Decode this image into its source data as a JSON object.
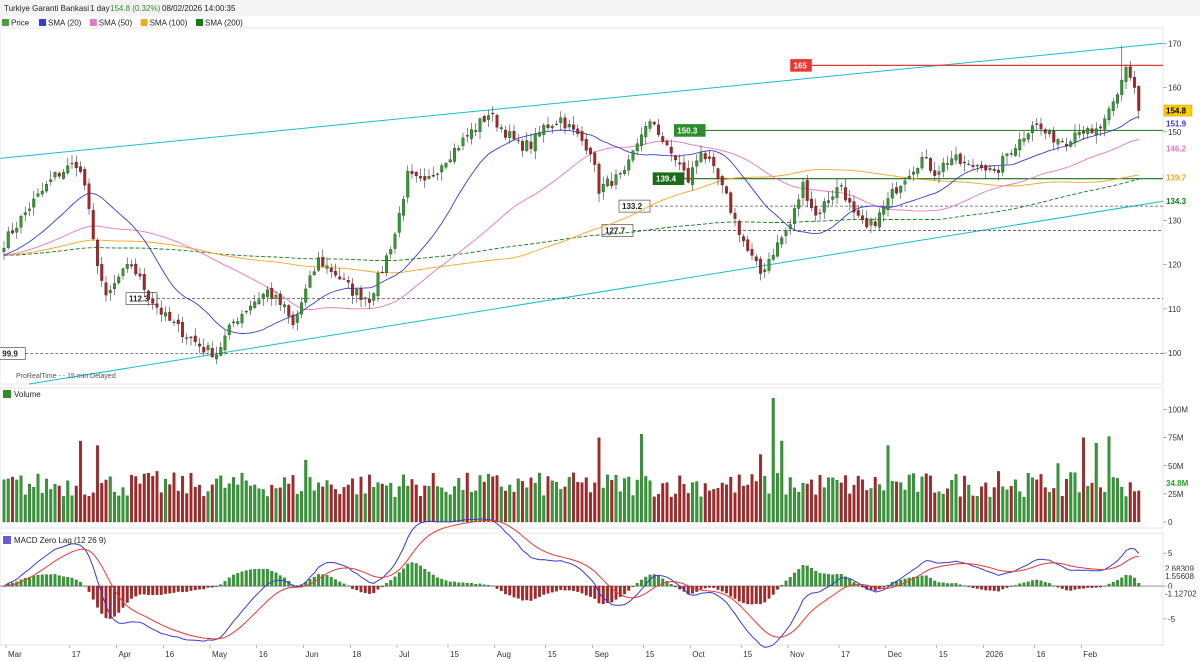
{
  "header": {
    "symbol": "Turkiye Garanti Bankasi",
    "interval": "1 day",
    "last": "154.8 (0.32%)",
    "datetime": "08/02/2026 14:00:35"
  },
  "legend": [
    {
      "label": "Price",
      "color": "#4a9e3f"
    },
    {
      "label": "SMA (20)",
      "color": "#3a3ad6"
    },
    {
      "label": "SMA (50)",
      "color": "#e377c2"
    },
    {
      "label": "SMA (100)",
      "color": "#f5a623"
    },
    {
      "label": "SMA (200)",
      "color": "#1a7a1a"
    }
  ],
  "watermark": "ProRealTime - - 15 min Delayed",
  "volume_title": "Volume",
  "macd_title": "MACD Zero Lag (12 26 9)",
  "chart_data": [
    {
      "type": "candlestick",
      "name": "price",
      "title": "Turkiye Garanti Bankasi",
      "x_labels": [
        "Mar",
        "17",
        "Apr",
        "16",
        "May",
        "16",
        "Jun",
        "18",
        "Jul",
        "15",
        "Aug",
        "15",
        "Sep",
        "15",
        "Oct",
        "15",
        "Nov",
        "17",
        "Dec",
        "15",
        "2026",
        "16",
        "Feb"
      ],
      "yticks": [
        100,
        110,
        120,
        130,
        140,
        150,
        160,
        170
      ],
      "ylim": [
        93,
        173
      ],
      "grid": false,
      "levels": [
        {
          "value": 165,
          "label": "165",
          "color": "#e53935",
          "style": "solid",
          "label_side": "left"
        },
        {
          "value": 150.3,
          "label": "150.3",
          "color": "#2e8b2e",
          "style": "solid",
          "label_side": "left"
        },
        {
          "value": 139.4,
          "label": "139.4",
          "color": "#1a6b1a",
          "style": "solid",
          "label_side": "left"
        },
        {
          "value": 133.2,
          "label": "133.2",
          "color": "#555555",
          "style": "dashed",
          "label_side": "left"
        },
        {
          "value": 127.7,
          "label": "127.7",
          "color": "#555555",
          "style": "dashed",
          "label_side": "left"
        },
        {
          "value": 112.3,
          "label": "112.3",
          "color": "#555555",
          "style": "dashed",
          "label_side": "left"
        },
        {
          "value": 99.9,
          "label": "99.9",
          "color": "#555555",
          "style": "dashed",
          "label_side": "left"
        }
      ],
      "axis_tags": [
        {
          "value": 154.8,
          "label": "154.8",
          "bg": "#ffd000",
          "fg": "#000000"
        },
        {
          "value": 151.9,
          "label": "151.9",
          "bg": "#ffffff",
          "fg": "#3a3ad6"
        },
        {
          "value": 146.2,
          "label": "146.2",
          "bg": "#ffffff",
          "fg": "#e377c2"
        },
        {
          "value": 139.7,
          "label": "139.7",
          "bg": "#ffffff",
          "fg": "#f5a623"
        },
        {
          "value": 134.3,
          "label": "134.3",
          "bg": "#ffffff",
          "fg": "#1a7a1a"
        }
      ],
      "trendlines": [
        {
          "x0": 0,
          "y0": 144,
          "x1": 1,
          "y1": 170,
          "color": "#17becf"
        },
        {
          "x0": 0.025,
          "y0": 93,
          "x1": 1,
          "y1": 134.3,
          "color": "#17becf"
        }
      ],
      "sma_colors": {
        "sma20": "#3a3ad6",
        "sma50": "#e377c2",
        "sma100": "#f5a623",
        "sma200": "#1a7a1a"
      },
      "price_anchors": [
        [
          0,
          125
        ],
        [
          6,
          133
        ],
        [
          12,
          140
        ],
        [
          17,
          143
        ],
        [
          19,
          138
        ],
        [
          21,
          125
        ],
        [
          24,
          112
        ],
        [
          27,
          117
        ],
        [
          30,
          120
        ],
        [
          34,
          113
        ],
        [
          38,
          108
        ],
        [
          43,
          104
        ],
        [
          47,
          101
        ],
        [
          50,
          99.9
        ],
        [
          54,
          107
        ],
        [
          58,
          111
        ],
        [
          62,
          114
        ],
        [
          66,
          110
        ],
        [
          68,
          106
        ],
        [
          71,
          114
        ],
        [
          74,
          121
        ],
        [
          78,
          118
        ],
        [
          82,
          114
        ],
        [
          86,
          112.3
        ],
        [
          89,
          119
        ],
        [
          92,
          127
        ],
        [
          95,
          140
        ],
        [
          99,
          138
        ],
        [
          103,
          143
        ],
        [
          107,
          147
        ],
        [
          110,
          150
        ],
        [
          114,
          154
        ],
        [
          117,
          151
        ],
        [
          121,
          147
        ],
        [
          124,
          147
        ],
        [
          127,
          151
        ],
        [
          131,
          153
        ],
        [
          134,
          150
        ],
        [
          138,
          146
        ],
        [
          140,
          137
        ],
        [
          143,
          139
        ],
        [
          146,
          140
        ],
        [
          150,
          150
        ],
        [
          153,
          152
        ],
        [
          156,
          146
        ],
        [
          158,
          144
        ],
        [
          161,
          139
        ],
        [
          164,
          146
        ],
        [
          167,
          141
        ],
        [
          170,
          135
        ],
        [
          172,
          130
        ],
        [
          175,
          123
        ],
        [
          178,
          118
        ],
        [
          181,
          123
        ],
        [
          185,
          129
        ],
        [
          188,
          138
        ],
        [
          191,
          131
        ],
        [
          194,
          135
        ],
        [
          197,
          138
        ],
        [
          200,
          131
        ],
        [
          203,
          128
        ],
        [
          206,
          131
        ],
        [
          209,
          136
        ],
        [
          212,
          140
        ],
        [
          216,
          144
        ],
        [
          219,
          141
        ],
        [
          223,
          144
        ],
        [
          227,
          142
        ],
        [
          230,
          143
        ],
        [
          233,
          140
        ],
        [
          236,
          145
        ],
        [
          239,
          148
        ],
        [
          242,
          152
        ],
        [
          246,
          149
        ],
        [
          250,
          148
        ],
        [
          253,
          151
        ],
        [
          256,
          149
        ],
        [
          259,
          152
        ],
        [
          262,
          158
        ],
        [
          264,
          165
        ],
        [
          266,
          160
        ],
        [
          267,
          154.8
        ]
      ],
      "series": [
        {
          "name": "Price",
          "color": "#4a9e3f"
        },
        {
          "name": "SMA (20)",
          "color": "#3a3ad6"
        },
        {
          "name": "SMA (50)",
          "color": "#e377c2"
        },
        {
          "name": "SMA (100)",
          "color": "#f5a623"
        },
        {
          "name": "SMA (200)",
          "color": "#1a7a1a"
        }
      ]
    },
    {
      "type": "bar",
      "name": "volume",
      "title": "Volume",
      "yticks": [
        0,
        25,
        50,
        75,
        100
      ],
      "ytick_labels": [
        "0",
        "25M",
        "50M",
        "75M",
        "100M"
      ],
      "ylim": [
        0,
        112
      ],
      "last_label": "34.8M",
      "spikes": [
        [
          18,
          72
        ],
        [
          22,
          68
        ],
        [
          36,
          45
        ],
        [
          71,
          55
        ],
        [
          140,
          75
        ],
        [
          150,
          78
        ],
        [
          178,
          60
        ],
        [
          181,
          110
        ],
        [
          183,
          72
        ],
        [
          208,
          68
        ],
        [
          234,
          45
        ],
        [
          248,
          52
        ],
        [
          254,
          75
        ],
        [
          257,
          70
        ],
        [
          260,
          76
        ]
      ]
    },
    {
      "type": "histogram+line",
      "name": "macd",
      "title": "MACD Zero Lag (12 26 9)",
      "yticks": [
        -5,
        0,
        5
      ],
      "ylim": [
        -8.5,
        7
      ],
      "last_labels": [
        {
          "value": 2.68309,
          "label": "2.68309",
          "color": "#e53935"
        },
        {
          "value": 1.55608,
          "label": "1.55608",
          "color": "#3a3ad6"
        },
        {
          "value": -1.12702,
          "label": "-1.12702",
          "color": "#e53935"
        }
      ]
    }
  ]
}
